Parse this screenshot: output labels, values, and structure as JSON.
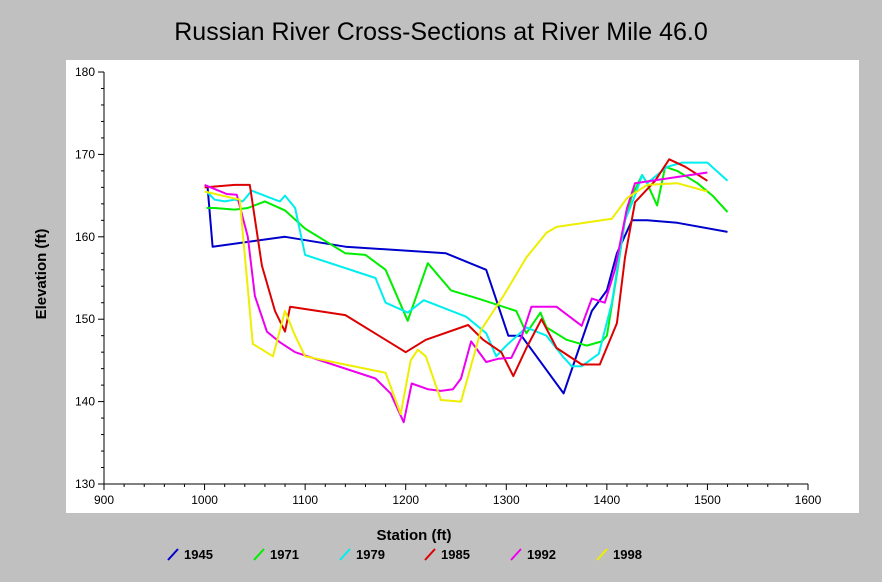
{
  "chart_data": {
    "type": "line",
    "title": "Russian River Cross-Sections at River Mile 46.0",
    "xlabel": "Station (ft)",
    "ylabel": "Elevation (ft)",
    "xlim": [
      900,
      1600
    ],
    "ylim": [
      130,
      180
    ],
    "xticks": [
      "900",
      "1000",
      "1100",
      "1200",
      "1300",
      "1400",
      "1500",
      "1600"
    ],
    "yticks": [
      "130",
      "140",
      "150",
      "160",
      "170",
      "180"
    ],
    "grid": false,
    "legend_position": "bottom",
    "series": [
      {
        "name": "1945",
        "color": "#0000cc",
        "points": [
          [
            1003,
            166
          ],
          [
            1008,
            158.8
          ],
          [
            1080,
            160
          ],
          [
            1140,
            158.8
          ],
          [
            1240,
            158
          ],
          [
            1280,
            156
          ],
          [
            1302,
            148
          ],
          [
            1315,
            148
          ],
          [
            1357,
            141
          ],
          [
            1385,
            151
          ],
          [
            1400,
            153.5
          ],
          [
            1410,
            158
          ],
          [
            1425,
            162
          ],
          [
            1440,
            162
          ],
          [
            1470,
            161.7
          ],
          [
            1520,
            160.6
          ]
        ]
      },
      {
        "name": "1971",
        "color": "#00ee00",
        "points": [
          [
            1002,
            163.5
          ],
          [
            1010,
            163.5
          ],
          [
            1030,
            163.3
          ],
          [
            1043,
            163.5
          ],
          [
            1060,
            164.3
          ],
          [
            1080,
            163.2
          ],
          [
            1100,
            161
          ],
          [
            1140,
            158
          ],
          [
            1160,
            157.8
          ],
          [
            1180,
            156
          ],
          [
            1202,
            149.8
          ],
          [
            1222,
            156.8
          ],
          [
            1245,
            153.5
          ],
          [
            1272,
            152.5
          ],
          [
            1310,
            151
          ],
          [
            1320,
            148.3
          ],
          [
            1334,
            150.8
          ],
          [
            1340,
            149
          ],
          [
            1360,
            147.5
          ],
          [
            1380,
            146.8
          ],
          [
            1395,
            147.3
          ],
          [
            1400,
            148
          ],
          [
            1410,
            155.5
          ],
          [
            1418,
            162
          ],
          [
            1425,
            165
          ],
          [
            1435,
            167.5
          ],
          [
            1440,
            166.5
          ],
          [
            1450,
            163.8
          ],
          [
            1458,
            168.5
          ],
          [
            1470,
            168
          ],
          [
            1490,
            166.5
          ],
          [
            1505,
            165
          ],
          [
            1520,
            163
          ]
        ]
      },
      {
        "name": "1979",
        "color": "#00eeee",
        "points": [
          [
            1002,
            165.5
          ],
          [
            1010,
            164.5
          ],
          [
            1020,
            164.3
          ],
          [
            1030,
            164.5
          ],
          [
            1038,
            164.3
          ],
          [
            1047,
            165.6
          ],
          [
            1070,
            164.5
          ],
          [
            1075,
            164.3
          ],
          [
            1080,
            165
          ],
          [
            1090,
            163.5
          ],
          [
            1100,
            157.8
          ],
          [
            1170,
            155
          ],
          [
            1180,
            152
          ],
          [
            1202,
            150.8
          ],
          [
            1218,
            152.3
          ],
          [
            1260,
            150.3
          ],
          [
            1280,
            148.3
          ],
          [
            1290,
            145.5
          ],
          [
            1300,
            146.8
          ],
          [
            1320,
            149
          ],
          [
            1340,
            148
          ],
          [
            1356,
            145.5
          ],
          [
            1365,
            144.3
          ],
          [
            1375,
            144.3
          ],
          [
            1392,
            145.8
          ],
          [
            1405,
            152
          ],
          [
            1418,
            162
          ],
          [
            1428,
            165
          ],
          [
            1435,
            167.5
          ],
          [
            1440,
            166.5
          ],
          [
            1460,
            168.5
          ],
          [
            1475,
            169
          ],
          [
            1500,
            169
          ],
          [
            1520,
            166.8
          ]
        ]
      },
      {
        "name": "1985",
        "color": "#dd0000",
        "points": [
          [
            1000,
            166
          ],
          [
            1030,
            166.3
          ],
          [
            1045,
            166.3
          ],
          [
            1057,
            156.5
          ],
          [
            1070,
            151
          ],
          [
            1080,
            148.5
          ],
          [
            1085,
            151.5
          ],
          [
            1140,
            150.5
          ],
          [
            1200,
            146
          ],
          [
            1220,
            147.5
          ],
          [
            1262,
            149.3
          ],
          [
            1277,
            147.5
          ],
          [
            1295,
            146
          ],
          [
            1307,
            143.1
          ],
          [
            1320,
            146.5
          ],
          [
            1335,
            150
          ],
          [
            1350,
            146.5
          ],
          [
            1375,
            144.5
          ],
          [
            1393,
            144.5
          ],
          [
            1410,
            149.5
          ],
          [
            1418,
            157.5
          ],
          [
            1428,
            164.2
          ],
          [
            1448,
            166.8
          ],
          [
            1462,
            169.4
          ],
          [
            1478,
            168.5
          ],
          [
            1500,
            166.8
          ]
        ]
      },
      {
        "name": "1992",
        "color": "#ee00ee",
        "points": [
          [
            1000,
            166.3
          ],
          [
            1012,
            165.7
          ],
          [
            1022,
            165.2
          ],
          [
            1032,
            165.1
          ],
          [
            1043,
            160
          ],
          [
            1050,
            152.8
          ],
          [
            1062,
            148.5
          ],
          [
            1075,
            147.2
          ],
          [
            1090,
            146
          ],
          [
            1170,
            142.8
          ],
          [
            1185,
            141
          ],
          [
            1198,
            137.5
          ],
          [
            1206,
            142.2
          ],
          [
            1222,
            141.5
          ],
          [
            1235,
            141.3
          ],
          [
            1247,
            141.5
          ],
          [
            1255,
            142.8
          ],
          [
            1265,
            147.3
          ],
          [
            1280,
            144.8
          ],
          [
            1292,
            145.2
          ],
          [
            1305,
            145.3
          ],
          [
            1315,
            147.8
          ],
          [
            1325,
            151.5
          ],
          [
            1350,
            151.5
          ],
          [
            1375,
            149.2
          ],
          [
            1385,
            152.5
          ],
          [
            1398,
            152
          ],
          [
            1408,
            156
          ],
          [
            1420,
            163.5
          ],
          [
            1428,
            166.5
          ],
          [
            1500,
            167.8
          ]
        ]
      },
      {
        "name": "1998",
        "color": "#eeee00",
        "points": [
          [
            1000,
            165.5
          ],
          [
            1035,
            164.5
          ],
          [
            1048,
            147
          ],
          [
            1068,
            145.5
          ],
          [
            1080,
            151
          ],
          [
            1090,
            148
          ],
          [
            1100,
            145.5
          ],
          [
            1180,
            143.5
          ],
          [
            1195,
            138.5
          ],
          [
            1205,
            145
          ],
          [
            1212,
            146.3
          ],
          [
            1220,
            145.5
          ],
          [
            1235,
            140.2
          ],
          [
            1255,
            140
          ],
          [
            1275,
            148.7
          ],
          [
            1298,
            153
          ],
          [
            1320,
            157.5
          ],
          [
            1340,
            160.5
          ],
          [
            1350,
            161.2
          ],
          [
            1405,
            162.2
          ],
          [
            1420,
            164.7
          ],
          [
            1440,
            166.3
          ],
          [
            1470,
            166.5
          ],
          [
            1500,
            165.5
          ]
        ]
      }
    ]
  }
}
